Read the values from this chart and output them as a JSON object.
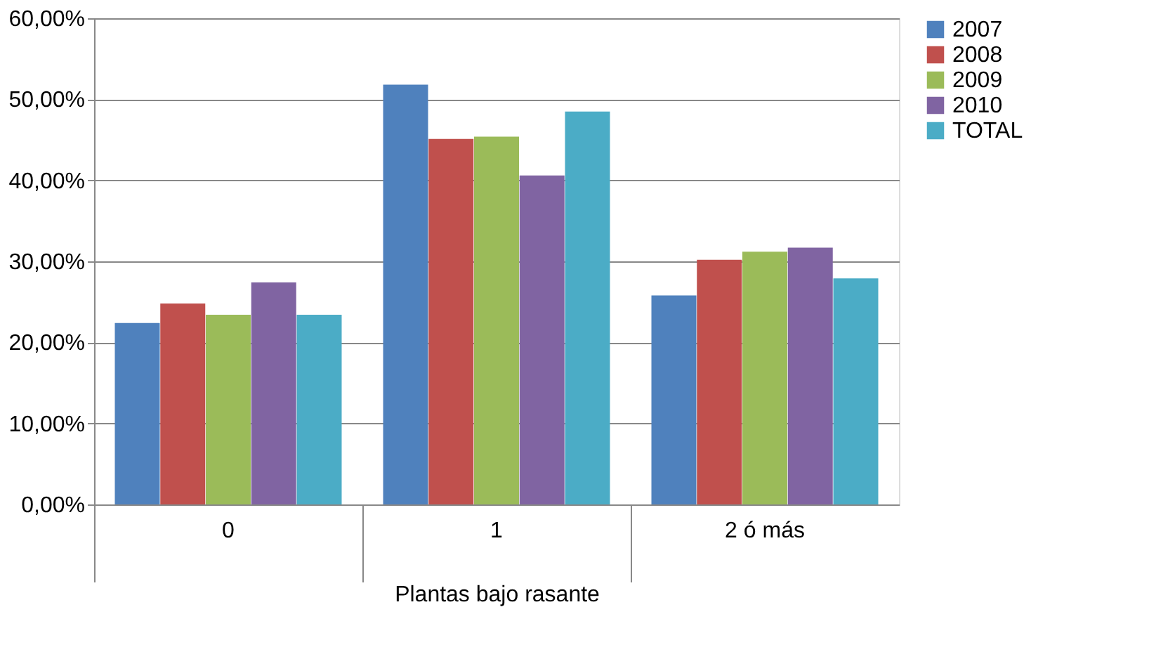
{
  "chart_data": {
    "type": "bar",
    "xlabel": "Plantas bajo rasante",
    "categories": [
      "0",
      "1",
      "2 ó más"
    ],
    "series": [
      {
        "name": "2007",
        "color": "#4f81bd",
        "values": [
          22.4,
          51.8,
          25.8
        ]
      },
      {
        "name": "2008",
        "color": "#c0504d",
        "values": [
          24.8,
          45.1,
          30.2
        ]
      },
      {
        "name": "2009",
        "color": "#9bbb59",
        "values": [
          23.4,
          45.4,
          31.2
        ]
      },
      {
        "name": "2010",
        "color": "#8064a2",
        "values": [
          27.4,
          40.6,
          31.7
        ]
      },
      {
        "name": "TOTAL",
        "color": "#4bacc6",
        "values": [
          23.4,
          48.5,
          27.9
        ]
      }
    ],
    "ylim": [
      0,
      60
    ],
    "yticks": [
      {
        "value": 0,
        "label": "0,00%"
      },
      {
        "value": 10,
        "label": "10,00%"
      },
      {
        "value": 20,
        "label": "20,00%"
      },
      {
        "value": 30,
        "label": "30,00%"
      },
      {
        "value": 40,
        "label": "40,00%"
      },
      {
        "value": 50,
        "label": "50,00%"
      },
      {
        "value": 60,
        "label": "60,00%"
      }
    ],
    "grid": "y",
    "legend": "right"
  }
}
